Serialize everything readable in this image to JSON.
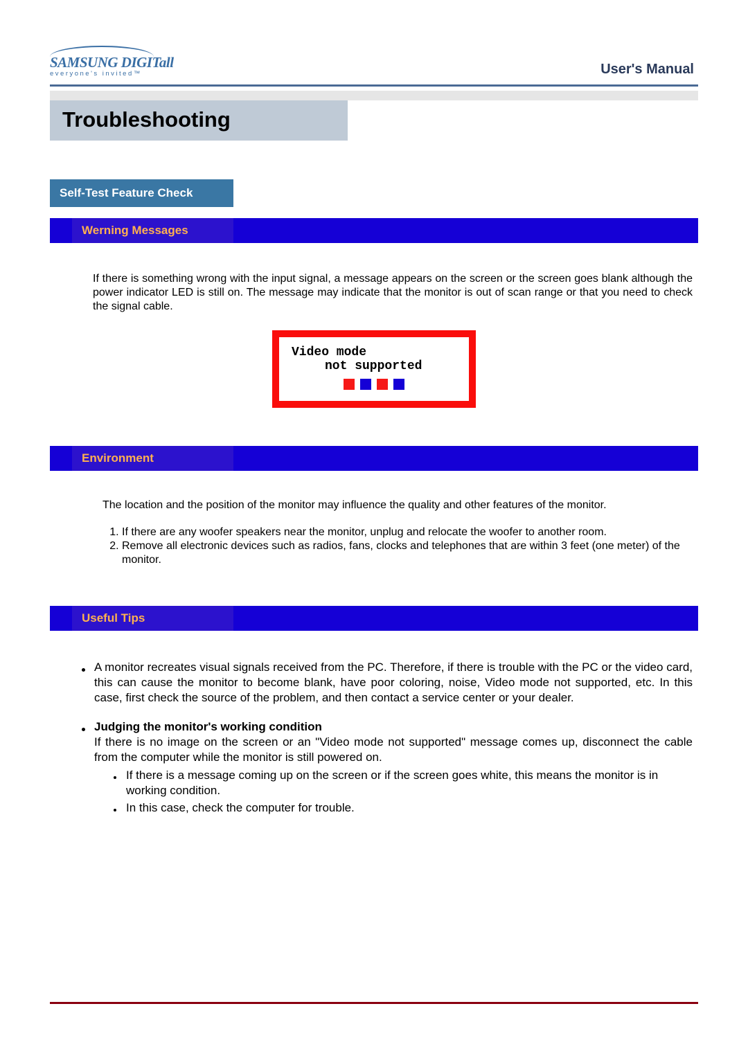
{
  "colors": {
    "header_rule": "#4a6a95",
    "title_box_bg": "#bfcad6",
    "section_tab_bg": "#3a77a4",
    "section_tab_text": "#ffffff",
    "sub_bar_bg": "#1500d6",
    "sub_tab_bg": "#2c12cd",
    "sub_tab_text": "#ffb050",
    "display_border": "#fa0d0b",
    "squares": [
      "#f61917",
      "#1500d6",
      "#f61917",
      "#1500d6"
    ],
    "bottom_rule": "#8a0010",
    "logo": "#3a6fa5"
  },
  "fonts": {
    "body_family": "Arial",
    "body_size_pt": 12,
    "title_size_pt": 23,
    "mono_family": "Courier New"
  },
  "logo": {
    "main": "SAMSUNG DIGITall",
    "sub": "everyone's invited™"
  },
  "header": {
    "manual_title": "User's Manual"
  },
  "title": "Troubleshooting",
  "section": {
    "label": "Self-Test Feature Check"
  },
  "warning": {
    "tab": "Werning Messages",
    "body": "If there is something wrong with the input signal, a message appears on the screen or the screen goes blank although the power indicator LED is still on. The message may indicate that the monitor is out of scan range or that you need to check the signal cable.",
    "display": {
      "line1": "Video mode",
      "line2": "not  supported"
    }
  },
  "environment": {
    "tab": "Environment",
    "intro": "The location and the position of the monitor may influence the quality and other features of the monitor.",
    "items": [
      "If there are any woofer speakers near the monitor, unplug and relocate the woofer to another room.",
      "Remove all electronic devices such as radios, fans, clocks and telephones that are within 3 feet (one meter) of the monitor."
    ]
  },
  "tips": {
    "tab": "Useful Tips",
    "bullets": [
      {
        "text": "A monitor recreates visual signals received from the PC. Therefore, if there is trouble with the PC or the video card, this can cause the monitor to become blank, have poor coloring, noise, Video mode not supported, etc. In this case, first check the source of the problem, and then contact a service center or your dealer."
      },
      {
        "heading": "Judging the monitor's working condition",
        "text": "If there is no image on the screen or an \"Video mode not supported\" message comes up, disconnect the cable from the computer while the monitor is still powered on.",
        "sub": [
          "If there is a message coming up on the screen or if the screen goes white, this means the monitor is in working condition.",
          "In this case, check the computer for trouble."
        ]
      }
    ]
  }
}
